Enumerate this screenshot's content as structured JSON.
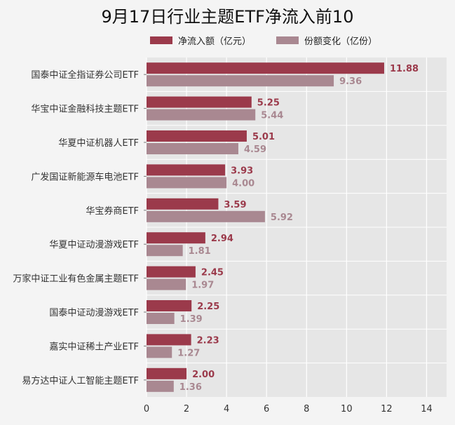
{
  "chart_data": {
    "type": "bar",
    "orientation": "horizontal",
    "title": "9月17日行业主题ETF净流入前10",
    "categories": [
      "国泰中证全指证券公司ETF",
      "华宝中证金融科技主题ETF",
      "华夏中证机器人ETF",
      "广发国证新能源车电池ETF",
      "华宝券商ETF",
      "华夏中证动漫游戏ETF",
      "万家中证工业有色金属主题ETF",
      "国泰中证动漫游戏ETF",
      "嘉实中证稀土产业ETF",
      "易方达中证人工智能主题ETF"
    ],
    "series": [
      {
        "name": "净流入额（亿元）",
        "color": "#9b3a4b",
        "labels": [
          "11.88",
          "5.25",
          "5.01",
          "3.93",
          "3.59",
          "2.94",
          "2.45",
          "2.25",
          "2.23",
          "2.00"
        ],
        "values": [
          11.88,
          5.25,
          5.01,
          3.93,
          3.59,
          2.94,
          2.45,
          2.25,
          2.23,
          2.0
        ]
      },
      {
        "name": "份额变化（亿份）",
        "color": "#a98891",
        "labels": [
          "9.36",
          "5.44",
          "4.59",
          "4.00",
          "5.92",
          "1.81",
          "1.97",
          "1.39",
          "1.27",
          "1.36"
        ],
        "values": [
          9.36,
          5.44,
          4.59,
          4.0,
          5.92,
          1.81,
          1.97,
          1.39,
          1.27,
          1.36
        ]
      }
    ],
    "xlim": [
      0,
      15
    ],
    "xticks": [
      0,
      2,
      4,
      6,
      8,
      10,
      12,
      14
    ],
    "xtick_labels": [
      "0",
      "2",
      "4",
      "6",
      "8",
      "10",
      "12",
      "14"
    ],
    "grid": true,
    "legend_position": "top",
    "plot_background": "#e6e6e6"
  }
}
